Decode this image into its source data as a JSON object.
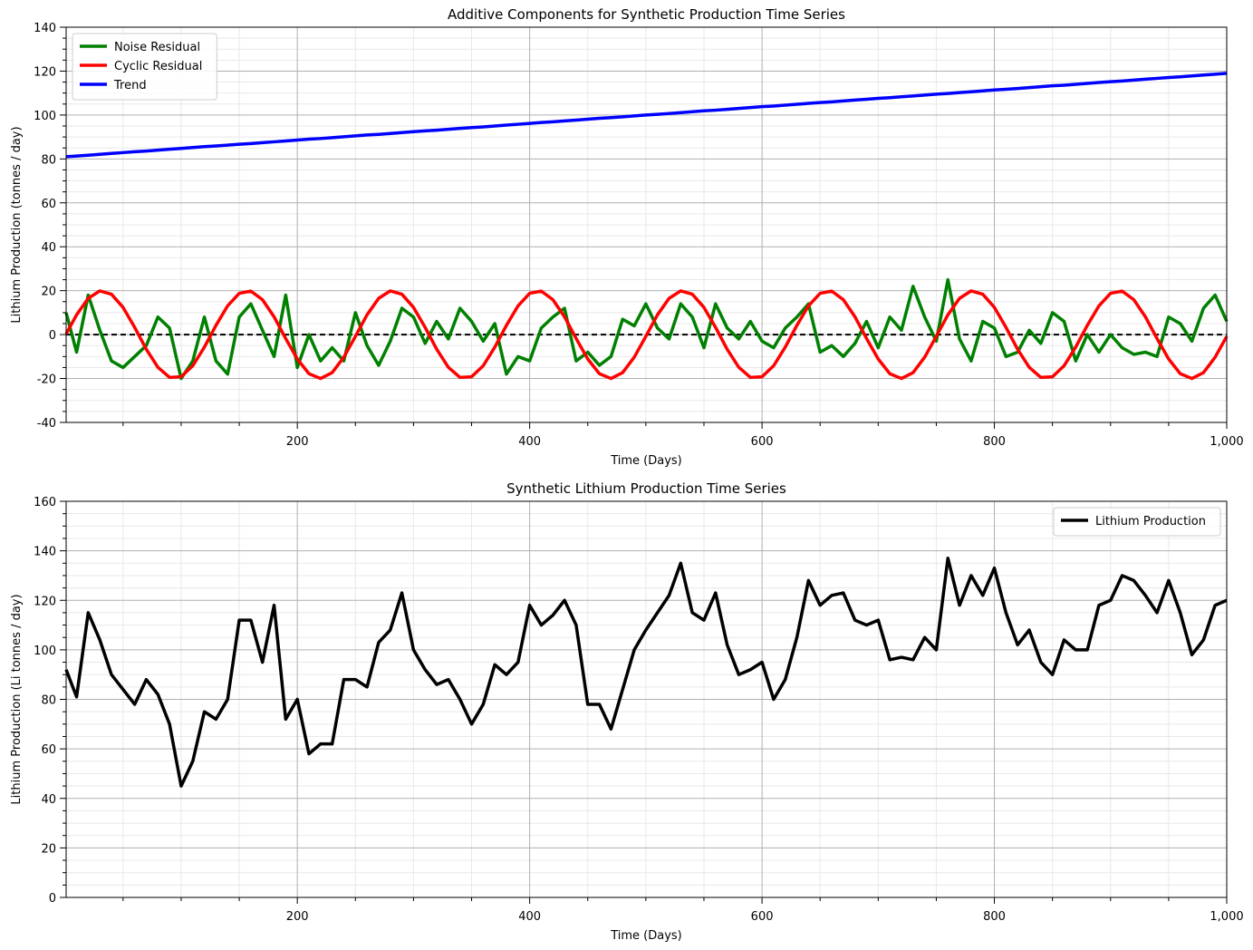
{
  "chart_data": [
    {
      "type": "line",
      "title": "Additive Components for Synthetic Production Time Series",
      "xlabel": "Time (Days)",
      "ylabel": "Lithium Production (tonnes / day)",
      "x": [
        1,
        10,
        20,
        30,
        40,
        50,
        60,
        70,
        80,
        90,
        100,
        110,
        120,
        130,
        140,
        150,
        160,
        170,
        180,
        190,
        200,
        210,
        220,
        230,
        240,
        250,
        260,
        270,
        280,
        290,
        300,
        310,
        320,
        330,
        340,
        350,
        360,
        370,
        380,
        390,
        400,
        410,
        420,
        430,
        440,
        450,
        460,
        470,
        480,
        490,
        500,
        510,
        520,
        530,
        540,
        550,
        560,
        570,
        580,
        590,
        600,
        610,
        620,
        630,
        640,
        650,
        660,
        670,
        680,
        690,
        700,
        710,
        720,
        730,
        740,
        750,
        760,
        770,
        780,
        790,
        800,
        810,
        820,
        830,
        840,
        850,
        860,
        870,
        880,
        890,
        900,
        910,
        920,
        930,
        940,
        950,
        960,
        970,
        980,
        990,
        1000
      ],
      "series": [
        {
          "name": "Noise Residual",
          "color": "#008000",
          "values": [
            10,
            -8,
            18,
            2,
            -12,
            -15,
            -10,
            -5,
            8,
            3,
            -20,
            -12,
            8,
            -12,
            -18,
            8,
            14,
            2,
            -10,
            18,
            -15,
            0,
            -12,
            -6,
            -12,
            10,
            -5,
            -14,
            -3,
            12,
            8,
            -4,
            6,
            -2,
            12,
            6,
            -3,
            5,
            -18,
            -10,
            -12,
            3,
            8,
            12,
            -12,
            -8,
            -14,
            -10,
            7,
            4,
            14,
            3,
            -2,
            14,
            8,
            -6,
            14,
            3,
            -2,
            6,
            -3,
            -6,
            3,
            8,
            14,
            -8,
            -5,
            -10,
            -4,
            6,
            -6,
            8,
            2,
            22,
            8,
            -3,
            25,
            -2,
            -12,
            6,
            3,
            -10,
            -8,
            2,
            -4,
            10,
            6,
            -12,
            0,
            -8,
            0,
            -6,
            -9,
            -8,
            -10,
            8,
            5,
            -3,
            12,
            18,
            6
          ]
        },
        {
          "name": "Cyclic Residual",
          "color": "#ff0000",
          "values": [
            0.3,
            9.0,
            16.5,
            19.9,
            18.4,
            12.4,
            3.3,
            -6.7,
            -14.9,
            -19.5,
            -19.2,
            -14.2,
            -5.7,
            4.2,
            13.1,
            18.8,
            19.8,
            15.9,
            8.1,
            -1.8,
            -11.1,
            -17.8,
            -20.0,
            -17.3,
            -10.3,
            -0.8,
            9.0,
            16.5,
            19.9,
            18.4,
            12.4,
            3.3,
            -6.7,
            -14.9,
            -19.5,
            -19.2,
            -14.2,
            -5.7,
            4.2,
            13.1,
            18.8,
            19.8,
            15.9,
            8.1,
            -1.8,
            -11.1,
            -17.8,
            -20.0,
            -17.3,
            -10.3,
            -0.8,
            9.0,
            16.5,
            19.9,
            18.4,
            12.4,
            3.3,
            -6.7,
            -14.9,
            -19.5,
            -19.2,
            -14.2,
            -5.7,
            4.2,
            13.1,
            18.8,
            19.8,
            15.9,
            8.1,
            -1.8,
            -11.1,
            -17.8,
            -20.0,
            -17.3,
            -10.3,
            -0.8,
            9.0,
            16.5,
            19.9,
            18.4,
            12.4,
            3.3,
            -6.7,
            -14.9,
            -19.5,
            -19.2,
            -14.2,
            -5.7,
            4.2,
            13.1,
            18.8,
            19.8,
            15.9,
            8.1,
            -1.8,
            -11.1,
            -17.8,
            -20.0,
            -17.3,
            -10.3,
            -0.8
          ]
        },
        {
          "name": "Trend",
          "color": "#0000ff",
          "values": [
            81.0,
            81.3,
            81.7,
            82.1,
            82.5,
            82.9,
            83.3,
            83.6,
            84.0,
            84.4,
            84.8,
            85.2,
            85.6,
            85.9,
            86.3,
            86.7,
            87.0,
            87.4,
            87.8,
            88.2,
            88.6,
            89.0,
            89.3,
            89.7,
            90.1,
            90.5,
            90.9,
            91.2,
            91.6,
            92.0,
            92.4,
            92.8,
            93.1,
            93.5,
            93.9,
            94.3,
            94.6,
            95.0,
            95.4,
            95.8,
            96.2,
            96.6,
            96.9,
            97.3,
            97.7,
            98.1,
            98.5,
            98.8,
            99.2,
            99.6,
            100.0,
            100.3,
            100.7,
            101.1,
            101.5,
            101.9,
            102.2,
            102.6,
            103.0,
            103.4,
            103.8,
            104.1,
            104.5,
            104.9,
            105.3,
            105.7,
            106.0,
            106.4,
            106.8,
            107.2,
            107.6,
            107.9,
            108.3,
            108.7,
            109.1,
            109.5,
            109.8,
            110.2,
            110.6,
            111.0,
            111.4,
            111.7,
            112.1,
            112.5,
            112.9,
            113.3,
            113.6,
            114.0,
            114.4,
            114.8,
            115.2,
            115.5,
            115.9,
            116.3,
            116.7,
            117.1,
            117.4,
            117.8,
            118.2,
            118.6,
            119.0
          ]
        }
      ],
      "hlines": [
        0
      ],
      "xlim": [
        1,
        1000
      ],
      "ylim": [
        -40,
        140
      ],
      "xticks": [
        200,
        400,
        600,
        800,
        {
          "value": 1000,
          "label": "1,000"
        }
      ],
      "yticks": [
        -40,
        -20,
        0,
        20,
        40,
        60,
        80,
        100,
        120,
        140
      ],
      "minor_xticks": [
        50,
        100,
        150,
        250,
        300,
        350,
        450,
        500,
        550,
        650,
        700,
        750,
        850,
        900,
        950
      ],
      "minor_yticks": [
        -35,
        -30,
        -25,
        -15,
        -10,
        -5,
        5,
        10,
        15,
        25,
        30,
        35,
        45,
        50,
        55,
        65,
        70,
        75,
        85,
        90,
        95,
        105,
        110,
        115,
        125,
        130,
        135
      ],
      "grid": true,
      "legend": "upper left"
    },
    {
      "type": "line",
      "title": "Synthetic Lithium Production Time Series",
      "xlabel": "Time (Days)",
      "ylabel": "Lithium Production (Li tonnes / day)",
      "x": [
        1,
        10,
        20,
        30,
        40,
        50,
        60,
        70,
        80,
        90,
        100,
        110,
        120,
        130,
        140,
        150,
        160,
        170,
        180,
        190,
        200,
        210,
        220,
        230,
        240,
        250,
        260,
        270,
        280,
        290,
        300,
        310,
        320,
        330,
        340,
        350,
        360,
        370,
        380,
        390,
        400,
        410,
        420,
        430,
        440,
        450,
        460,
        470,
        480,
        490,
        500,
        510,
        520,
        530,
        540,
        550,
        560,
        570,
        580,
        590,
        600,
        610,
        620,
        630,
        640,
        650,
        660,
        670,
        680,
        690,
        700,
        710,
        720,
        730,
        740,
        750,
        760,
        770,
        780,
        790,
        800,
        810,
        820,
        830,
        840,
        850,
        860,
        870,
        880,
        890,
        900,
        910,
        920,
        930,
        940,
        950,
        960,
        970,
        980,
        990,
        1000
      ],
      "series": [
        {
          "name": "Lithium Production",
          "color": "#000000",
          "values": [
            92,
            81,
            115,
            104,
            90,
            84,
            78,
            88,
            82,
            70,
            45,
            55,
            75,
            72,
            80,
            112,
            112,
            95,
            118,
            72,
            80,
            58,
            62,
            62,
            88,
            88,
            85,
            103,
            108,
            123,
            100,
            92,
            86,
            88,
            80,
            70,
            78,
            94,
            90,
            95,
            118,
            110,
            114,
            120,
            110,
            78,
            78,
            68,
            84,
            100,
            108,
            115,
            122,
            135,
            115,
            112,
            123,
            102,
            90,
            92,
            95,
            80,
            88,
            105,
            128,
            118,
            122,
            123,
            112,
            110,
            112,
            96,
            97,
            96,
            105,
            100,
            137,
            118,
            130,
            122,
            133,
            115,
            102,
            108,
            95,
            90,
            104,
            100,
            100,
            118,
            120,
            130,
            128,
            122,
            115,
            128,
            115,
            98,
            104,
            118,
            120
          ]
        }
      ],
      "xlim": [
        1,
        1000
      ],
      "ylim": [
        0,
        160
      ],
      "xticks": [
        200,
        400,
        600,
        800,
        {
          "value": 1000,
          "label": "1,000"
        }
      ],
      "yticks": [
        0,
        20,
        40,
        60,
        80,
        100,
        120,
        140,
        160
      ],
      "minor_xticks": [
        50,
        100,
        150,
        250,
        300,
        350,
        450,
        500,
        550,
        650,
        700,
        750,
        850,
        900,
        950
      ],
      "minor_yticks": [
        5,
        10,
        15,
        25,
        30,
        35,
        45,
        50,
        55,
        65,
        70,
        75,
        85,
        90,
        95,
        105,
        110,
        115,
        125,
        130,
        135,
        145,
        150,
        155
      ],
      "grid": true,
      "legend": "upper right"
    }
  ]
}
